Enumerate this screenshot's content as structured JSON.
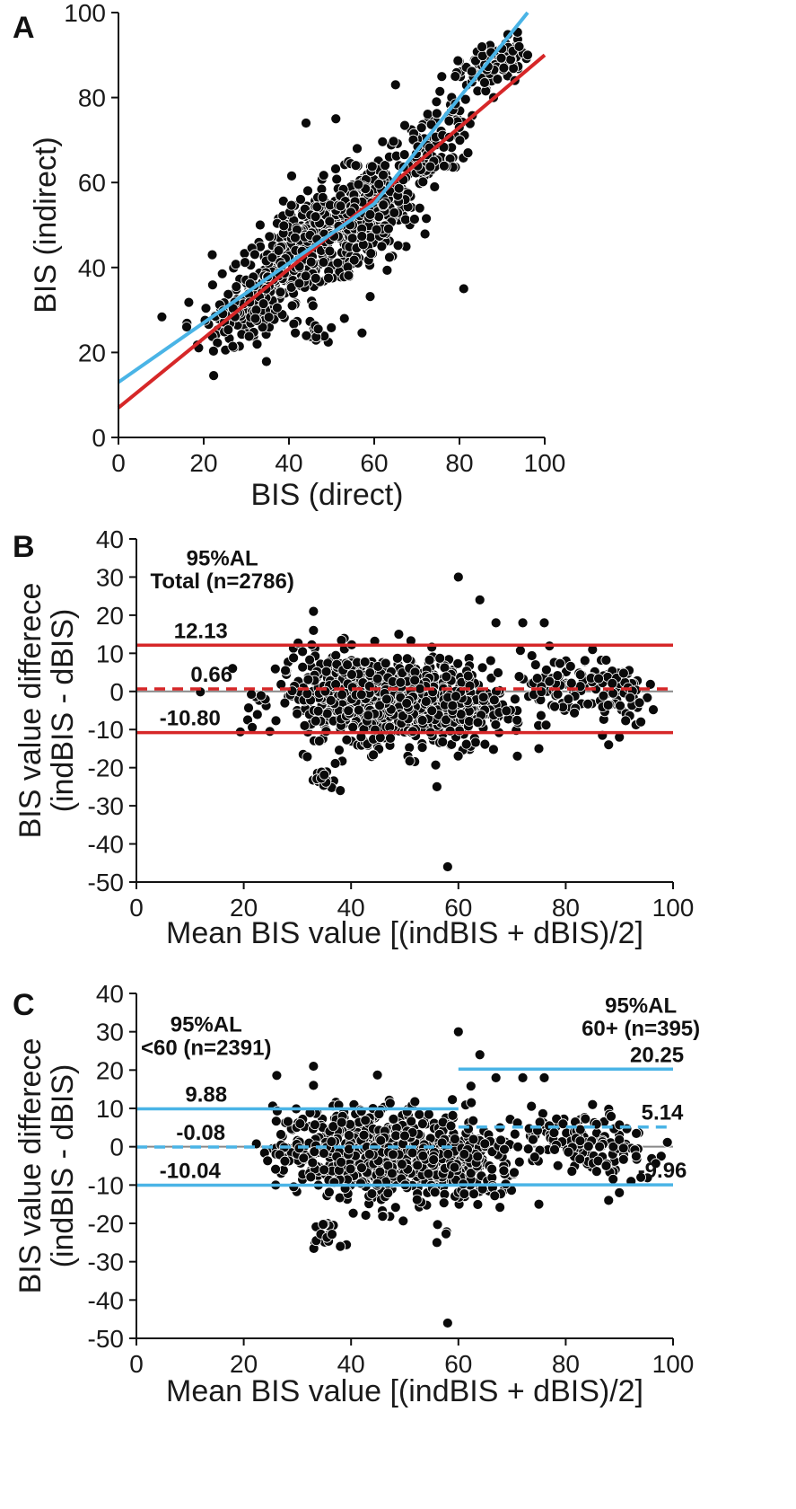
{
  "colors": {
    "red": "#d62728",
    "blue": "#4ab4e6",
    "points": "#0a0a0a",
    "zero_line": "#888888"
  },
  "chart_data": [
    {
      "type": "scatter",
      "panel_label": "A",
      "xlabel": "BIS (direct)",
      "ylabel": "BIS (indirect)",
      "xlim": [
        0,
        100
      ],
      "ylim": [
        0,
        100
      ],
      "xticks": [
        "0",
        "20",
        "40",
        "60",
        "80",
        "100"
      ],
      "yticks": [
        "0",
        "20",
        "40",
        "60",
        "80",
        "100"
      ],
      "lines": [
        {
          "color": "red",
          "points": [
            [
              0,
              7
            ],
            [
              60,
              56
            ],
            [
              100,
              90
            ]
          ]
        },
        {
          "color": "blue",
          "points": [
            [
              0,
              13
            ],
            [
              60,
              55
            ],
            [
              96,
              100
            ]
          ]
        }
      ],
      "clusters": [
        {
          "cx": 45,
          "cy": 45,
          "sx": 10,
          "sy": 9,
          "n": 520,
          "corr": 0.75
        },
        {
          "cx": 60,
          "cy": 52,
          "sx": 5,
          "sy": 7,
          "n": 160,
          "corr": 0.4
        },
        {
          "cx": 72,
          "cy": 68,
          "sx": 6,
          "sy": 8,
          "n": 120,
          "corr": 0.7
        },
        {
          "cx": 88,
          "cy": 88,
          "sx": 4,
          "sy": 3,
          "n": 80,
          "corr": 0.5
        },
        {
          "cx": 30,
          "cy": 30,
          "sx": 5,
          "sy": 4,
          "n": 90,
          "corr": 0.5
        },
        {
          "cx": 46,
          "cy": 24,
          "sx": 1.5,
          "sy": 1.5,
          "n": 18,
          "corr": 0
        }
      ],
      "outliers": [
        [
          44,
          74
        ],
        [
          51,
          75
        ],
        [
          81,
          35
        ],
        [
          65,
          83
        ],
        [
          56,
          68
        ],
        [
          22,
          43
        ],
        [
          16,
          26
        ],
        [
          53,
          28
        ],
        [
          82,
          67
        ],
        [
          88,
          80
        ],
        [
          93,
          84
        ],
        [
          96,
          90
        ],
        [
          94,
          92
        ]
      ]
    },
    {
      "type": "scatter",
      "panel_label": "B",
      "xlabel": "Mean BIS value  [(indBIS + dBIS)/2]",
      "ylabel": [
        "BIS value differece",
        "(indBIS - dBIS)"
      ],
      "xlim": [
        0,
        100
      ],
      "ylim": [
        -50,
        40
      ],
      "xticks": [
        "0",
        "20",
        "40",
        "60",
        "80",
        "100"
      ],
      "yticks": [
        "40",
        "30",
        "20",
        "10",
        "0",
        "-10",
        "-20",
        "-30",
        "-40",
        "-50"
      ],
      "annotations": [
        {
          "text": "95%AL",
          "x": 16,
          "y": 33
        },
        {
          "text": "Total (n=2786)",
          "x": 16,
          "y": 27
        }
      ],
      "hlines": [
        {
          "y": 12.13,
          "label": "12.13",
          "label_x": 12,
          "color": "red",
          "dashed": false,
          "x_from": 0,
          "x_to": 100
        },
        {
          "y": 0.66,
          "label": "0.66",
          "label_x": 14,
          "color": "red",
          "dashed": true,
          "x_from": 0,
          "x_to": 100
        },
        {
          "y": -10.8,
          "label": "-10.80",
          "label_x": 10,
          "color": "red",
          "dashed": false,
          "x_from": 0,
          "x_to": 100
        }
      ],
      "clusters": [
        {
          "cx": 42,
          "cy": -1,
          "sx": 8,
          "sy": 5.5,
          "n": 520,
          "corr": 0
        },
        {
          "cx": 54,
          "cy": -4,
          "sx": 6,
          "sy": 6,
          "n": 280,
          "corr": 0
        },
        {
          "cx": 64,
          "cy": -4,
          "sx": 4,
          "sy": 6,
          "n": 80,
          "corr": 0
        },
        {
          "cx": 80,
          "cy": 2,
          "sx": 6,
          "sy": 4,
          "n": 100,
          "corr": 0
        },
        {
          "cx": 90,
          "cy": -1,
          "sx": 3,
          "sy": 3.5,
          "n": 40,
          "corr": 0
        },
        {
          "cx": 35,
          "cy": -23,
          "sx": 1.3,
          "sy": 1.5,
          "n": 16,
          "corr": 0
        }
      ],
      "outliers": [
        [
          58,
          -46
        ],
        [
          60,
          30
        ],
        [
          64,
          24
        ],
        [
          33,
          21
        ],
        [
          33,
          16
        ],
        [
          67,
          18
        ],
        [
          72,
          18
        ],
        [
          76,
          18
        ],
        [
          75,
          -15
        ],
        [
          85,
          11
        ],
        [
          88,
          -14
        ],
        [
          90,
          -12
        ],
        [
          38,
          -26
        ],
        [
          56,
          -25
        ],
        [
          94,
          -8
        ]
      ]
    },
    {
      "type": "scatter",
      "panel_label": "C",
      "xlabel": "Mean BIS value  [(indBIS + dBIS)/2]",
      "ylabel": [
        "BIS value differece",
        "(indBIS - dBIS)"
      ],
      "xlim": [
        0,
        100
      ],
      "ylim": [
        -50,
        40
      ],
      "xticks": [
        "0",
        "20",
        "40",
        "60",
        "80",
        "100"
      ],
      "yticks": [
        "40",
        "30",
        "20",
        "10",
        "0",
        "-10",
        "-20",
        "-30",
        "-40",
        "-50"
      ],
      "annotations": [
        {
          "text": "95%AL",
          "x": 13,
          "y": 30
        },
        {
          "text": "<60 (n=2391)",
          "x": 13,
          "y": 24
        },
        {
          "text": "95%AL",
          "x": 94,
          "y": 35
        },
        {
          "text": "60+ (n=395)",
          "x": 94,
          "y": 29
        }
      ],
      "hlines": [
        {
          "y": 9.88,
          "label": "9.88",
          "label_x": 13,
          "color": "blue",
          "dashed": false,
          "x_from": 0,
          "x_to": 60
        },
        {
          "y": -0.08,
          "label": "-0.08",
          "label_x": 12,
          "color": "blue",
          "dashed": true,
          "x_from": 0,
          "x_to": 60
        },
        {
          "y": -10.04,
          "label": "-10.04",
          "label_x": 10,
          "color": "blue",
          "dashed": false,
          "x_from": 0,
          "x_to": 60
        },
        {
          "y": 20.25,
          "label": "20.25",
          "label_x": 97,
          "color": "blue",
          "dashed": false,
          "x_from": 60,
          "x_to": 100
        },
        {
          "y": 5.14,
          "label": "5.14",
          "label_x": 98,
          "color": "blue",
          "dashed": true,
          "x_from": 60,
          "x_to": 100
        },
        {
          "y": -9.96,
          "label": "-9.96",
          "label_x": 98,
          "color": "blue",
          "dashed": false,
          "x_from": 60,
          "x_to": 100
        }
      ],
      "clusters": [
        {
          "cx": 42,
          "cy": -1,
          "sx": 8,
          "sy": 5.5,
          "n": 520,
          "corr": 0
        },
        {
          "cx": 54,
          "cy": -4,
          "sx": 6,
          "sy": 6,
          "n": 280,
          "corr": 0
        },
        {
          "cx": 64,
          "cy": -4,
          "sx": 4,
          "sy": 6,
          "n": 80,
          "corr": 0
        },
        {
          "cx": 80,
          "cy": 2,
          "sx": 6,
          "sy": 4,
          "n": 100,
          "corr": 0
        },
        {
          "cx": 90,
          "cy": -1,
          "sx": 3,
          "sy": 3.5,
          "n": 40,
          "corr": 0
        },
        {
          "cx": 35,
          "cy": -23,
          "sx": 1.3,
          "sy": 1.5,
          "n": 16,
          "corr": 0
        }
      ],
      "outliers": [
        [
          58,
          -46
        ],
        [
          60,
          30
        ],
        [
          64,
          24
        ],
        [
          33,
          21
        ],
        [
          33,
          16
        ],
        [
          67,
          18
        ],
        [
          72,
          18
        ],
        [
          76,
          18
        ],
        [
          75,
          -15
        ],
        [
          85,
          11
        ],
        [
          88,
          -14
        ],
        [
          90,
          -12
        ],
        [
          38,
          -26
        ],
        [
          56,
          -25
        ],
        [
          94,
          -8
        ]
      ]
    }
  ]
}
